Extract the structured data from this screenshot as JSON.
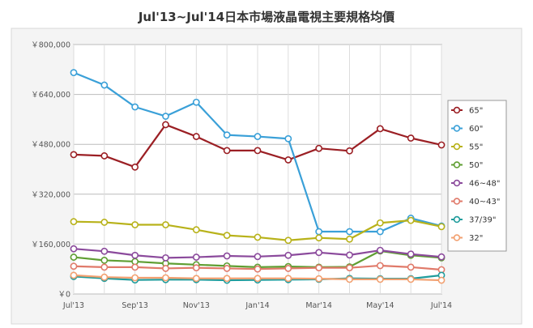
{
  "title": "Jul'13~Jul'14日本市場液晶電視主要規格均價",
  "chart_data": {
    "type": "line",
    "title": "Jul'13~Jul'14日本市場液晶電視主要規格均價",
    "x": [
      "Jul'13",
      "Aug'13",
      "Sep'13",
      "Oct'13",
      "Nov'13",
      "Dec'13",
      "Jan'14",
      "Feb'14",
      "Mar'14",
      "Apr'14",
      "May'14",
      "Jun'14",
      "Jul'14"
    ],
    "x_tick_labels": [
      "Jul'13",
      "",
      "Sep'13",
      "",
      "Nov'13",
      "",
      "Jan'14",
      "",
      "Mar'14",
      "",
      "May'14",
      "",
      "Jul'14"
    ],
    "y_tick_labels": [
      "￥0",
      "￥160,000",
      "￥320,000",
      "￥480,000",
      "￥640,000",
      "￥800,000"
    ],
    "y_ticks": [
      0,
      160000,
      320000,
      480000,
      640000,
      800000
    ],
    "ylim": [
      0,
      800000
    ],
    "grid": true,
    "legend_position": "right",
    "series": [
      {
        "name": "65\"",
        "color": "#9b1f24",
        "values": [
          447000,
          443000,
          407000,
          543000,
          505000,
          460000,
          460000,
          430000,
          467000,
          459000,
          530000,
          500000,
          478000
        ]
      },
      {
        "name": "60\"",
        "color": "#3aa0d8",
        "values": [
          710000,
          670000,
          600000,
          570000,
          615000,
          510000,
          505000,
          498000,
          200000,
          200000,
          200000,
          243000,
          218000
        ]
      },
      {
        "name": "55\"",
        "color": "#b8b21a",
        "values": [
          232000,
          230000,
          222000,
          222000,
          206000,
          188000,
          182000,
          172000,
          180000,
          176000,
          228000,
          236000,
          216000
        ]
      },
      {
        "name": "50\"",
        "color": "#5f9e32",
        "values": [
          118000,
          108000,
          104000,
          98000,
          94000,
          90000,
          86000,
          88000,
          86000,
          87000,
          138000,
          124000,
          116000
        ]
      },
      {
        "name": "46~48\"",
        "color": "#8b4a9c",
        "values": [
          145000,
          137000,
          124000,
          116000,
          118000,
          122000,
          120000,
          124000,
          133000,
          125000,
          140000,
          128000,
          119000
        ]
      },
      {
        "name": "40~43\"",
        "color": "#e07a6a",
        "values": [
          89000,
          86000,
          86000,
          82000,
          84000,
          82000,
          80000,
          82000,
          84000,
          84000,
          91000,
          86000,
          78000
        ]
      },
      {
        "name": "37/39\"",
        "color": "#1f9c9c",
        "values": [
          56000,
          50000,
          45000,
          46000,
          46000,
          44000,
          45000,
          46000,
          47000,
          50000,
          49000,
          49000,
          60000
        ]
      },
      {
        "name": "32\"",
        "color": "#f2a070",
        "values": [
          60000,
          54000,
          52000,
          52000,
          50000,
          50000,
          50000,
          50000,
          49000,
          47000,
          47000,
          47000,
          44000
        ]
      }
    ]
  }
}
